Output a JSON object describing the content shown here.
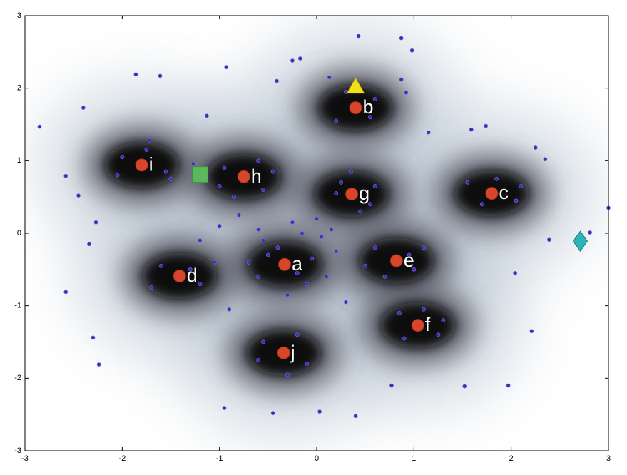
{
  "chart_data": {
    "type": "scatter",
    "xlim": [
      -3,
      3
    ],
    "ylim": [
      -3,
      3
    ],
    "xticks": [
      -3,
      -2,
      -1,
      0,
      1,
      2,
      3
    ],
    "yticks": [
      -3,
      -2,
      -1,
      0,
      1,
      2,
      3
    ],
    "series": [
      {
        "name": null,
        "color": "#3a2fb8",
        "marker": "dot",
        "x": [
          -2.85,
          -2.4,
          -1.86,
          -1.61,
          -0.93,
          -0.25,
          -0.17,
          0.43,
          0.87,
          0.98,
          -2.58,
          -2.45,
          -2.27,
          -2.34,
          -2.58,
          -2.3,
          -2.24,
          -0.95,
          -0.45,
          0.03,
          0.4,
          0.77,
          1.52,
          1.97,
          2.21,
          2.04,
          3.0,
          2.81,
          2.39,
          2.25,
          2.35,
          1.59,
          1.74,
          1.15,
          0.87,
          0.92,
          0.13,
          -0.41,
          -1.13,
          -1.27,
          -1.72,
          -0.5,
          -0.2,
          -0.1,
          -0.6,
          -0.4,
          -0.05,
          -0.3,
          -0.7,
          0.1,
          0.2,
          -0.15,
          -0.55,
          0.25,
          0.55,
          0.45,
          0.2,
          0.6,
          0.35,
          0.6,
          1.0,
          0.95,
          0.7,
          1.1,
          0.5,
          0.85,
          1.25,
          1.1,
          0.9,
          1.3,
          -0.55,
          -0.1,
          -0.3,
          -0.6,
          -0.2,
          -1.6,
          -1.2,
          -1.3,
          -1.7,
          -1.05,
          -0.95,
          -0.55,
          -0.6,
          -1.0,
          -0.45,
          -0.85,
          -2.0,
          -1.55,
          -1.75,
          -2.05,
          -1.5,
          0.2,
          0.6,
          0.3,
          0.55,
          1.55,
          2.05,
          1.7,
          2.1,
          1.85,
          -0.8,
          -1.0,
          -0.6,
          0.0,
          0.05,
          -0.25,
          0.15,
          -1.2,
          -0.9,
          0.3
        ],
        "values": [
          1.47,
          1.73,
          2.19,
          2.17,
          2.29,
          2.38,
          2.41,
          2.72,
          2.69,
          2.52,
          0.79,
          0.52,
          0.15,
          -0.15,
          -0.81,
          -1.44,
          -1.81,
          -2.41,
          -2.48,
          -2.46,
          -2.52,
          -2.1,
          -2.11,
          -2.1,
          -1.35,
          -0.55,
          0.35,
          0.01,
          -0.09,
          1.18,
          1.02,
          1.43,
          1.48,
          1.39,
          2.12,
          1.94,
          2.15,
          2.1,
          1.62,
          0.96,
          1.28,
          -0.3,
          -0.55,
          -0.7,
          -0.6,
          -0.2,
          -0.35,
          -0.85,
          -0.4,
          -0.6,
          -0.25,
          0.0,
          -0.1,
          0.7,
          0.4,
          0.3,
          0.55,
          0.65,
          0.85,
          -0.2,
          -0.5,
          -0.3,
          -0.6,
          -0.2,
          -0.45,
          -1.1,
          -1.4,
          -1.05,
          -1.45,
          -1.2,
          -1.5,
          -1.8,
          -1.95,
          -1.75,
          -1.4,
          -0.45,
          -0.7,
          -0.5,
          -0.75,
          -0.4,
          0.9,
          0.6,
          1.0,
          0.65,
          0.85,
          0.5,
          1.05,
          0.85,
          1.15,
          0.8,
          0.75,
          1.55,
          1.85,
          1.95,
          1.6,
          0.7,
          0.45,
          0.4,
          0.65,
          0.75,
          0.25,
          0.1,
          0.05,
          0.2,
          -0.05,
          0.15,
          0.05,
          -0.1,
          -1.05,
          -0.95
        ]
      },
      {
        "name": null,
        "color": "#d9452b",
        "marker": "center",
        "labels": [
          "a",
          "b",
          "c",
          "d",
          "e",
          "f",
          "g",
          "h",
          "i",
          "j"
        ],
        "x": [
          -0.33,
          0.4,
          1.8,
          -1.41,
          0.82,
          1.04,
          0.36,
          -0.75,
          -1.8,
          -0.34
        ],
        "values": [
          -0.43,
          1.73,
          0.55,
          -0.59,
          -0.38,
          -1.27,
          0.54,
          0.78,
          0.94,
          -1.65
        ]
      },
      {
        "name": null,
        "color": "#f2e11a",
        "marker": "triangle",
        "x": [
          0.4
        ],
        "values": [
          2.03
        ]
      },
      {
        "name": null,
        "color": "#5cb85c",
        "marker": "square",
        "x": [
          -1.2
        ],
        "values": [
          0.81
        ]
      },
      {
        "name": null,
        "color": "#2cb3b5",
        "marker": "diamond",
        "x": [
          2.71
        ],
        "values": [
          -0.11
        ]
      }
    ]
  }
}
